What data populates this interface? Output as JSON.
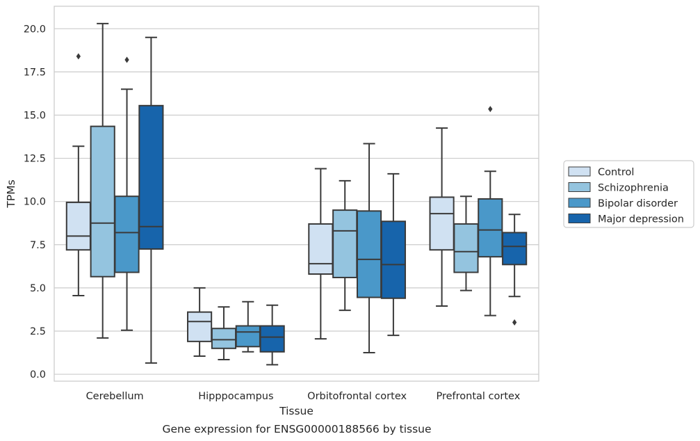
{
  "chart_data": {
    "type": "boxplot",
    "caption": "Gene expression for ENSG00000188566 by tissue",
    "xlabel": "Tissue",
    "ylabel": "TPMs",
    "ylim": [
      -0.4,
      21.3
    ],
    "yticks": [
      0.0,
      2.5,
      5.0,
      7.5,
      10.0,
      12.5,
      15.0,
      17.5,
      20.0
    ],
    "ytick_labels": [
      "0.0",
      "2.5",
      "5.0",
      "7.5",
      "10.0",
      "12.5",
      "15.0",
      "17.5",
      "20.0"
    ],
    "grid": "horizontal",
    "legend_position": "right",
    "categories": [
      "Cerebellum",
      "Hipppocampus",
      "Orbitofrontal cortex",
      "Prefrontal cortex"
    ],
    "series": [
      {
        "name": "Control",
        "color": "#d0e1f2",
        "boxes": [
          {
            "whisker_low": 4.55,
            "q1": 7.2,
            "median": 8.0,
            "q3": 9.95,
            "whisker_high": 13.2,
            "outliers": [
              18.4
            ]
          },
          {
            "whisker_low": 1.05,
            "q1": 1.9,
            "median": 3.05,
            "q3": 3.6,
            "whisker_high": 5.0,
            "outliers": []
          },
          {
            "whisker_low": 2.05,
            "q1": 5.8,
            "median": 6.4,
            "q3": 8.7,
            "whisker_high": 11.9,
            "outliers": []
          },
          {
            "whisker_low": 3.95,
            "q1": 7.2,
            "median": 9.3,
            "q3": 10.25,
            "whisker_high": 14.25,
            "outliers": []
          }
        ]
      },
      {
        "name": "Schizophrenia",
        "color": "#94c4df",
        "boxes": [
          {
            "whisker_low": 2.1,
            "q1": 5.65,
            "median": 8.75,
            "q3": 14.35,
            "whisker_high": 20.3,
            "outliers": []
          },
          {
            "whisker_low": 0.85,
            "q1": 1.5,
            "median": 2.0,
            "q3": 2.65,
            "whisker_high": 3.9,
            "outliers": []
          },
          {
            "whisker_low": 3.7,
            "q1": 5.6,
            "median": 8.3,
            "q3": 9.5,
            "whisker_high": 11.2,
            "outliers": []
          },
          {
            "whisker_low": 4.85,
            "q1": 5.9,
            "median": 7.1,
            "q3": 8.7,
            "whisker_high": 10.3,
            "outliers": []
          }
        ]
      },
      {
        "name": "Bipolar disorder",
        "color": "#4a98c9",
        "boxes": [
          {
            "whisker_low": 2.55,
            "q1": 5.9,
            "median": 8.2,
            "q3": 10.3,
            "whisker_high": 16.5,
            "outliers": [
              18.2
            ]
          },
          {
            "whisker_low": 1.3,
            "q1": 1.6,
            "median": 2.45,
            "q3": 2.8,
            "whisker_high": 4.2,
            "outliers": []
          },
          {
            "whisker_low": 1.25,
            "q1": 4.45,
            "median": 6.65,
            "q3": 9.45,
            "whisker_high": 13.35,
            "outliers": []
          },
          {
            "whisker_low": 3.4,
            "q1": 6.8,
            "median": 8.35,
            "q3": 10.15,
            "whisker_high": 11.75,
            "outliers": [
              15.35
            ]
          }
        ]
      },
      {
        "name": "Major depression",
        "color": "#1764ab",
        "boxes": [
          {
            "whisker_low": 0.65,
            "q1": 7.25,
            "median": 8.55,
            "q3": 15.55,
            "whisker_high": 19.5,
            "outliers": []
          },
          {
            "whisker_low": 0.55,
            "q1": 1.3,
            "median": 2.15,
            "q3": 2.8,
            "whisker_high": 4.0,
            "outliers": []
          },
          {
            "whisker_low": 2.25,
            "q1": 4.4,
            "median": 6.35,
            "q3": 8.85,
            "whisker_high": 11.6,
            "outliers": []
          },
          {
            "whisker_low": 4.5,
            "q1": 6.35,
            "median": 7.4,
            "q3": 8.2,
            "whisker_high": 9.25,
            "outliers": [
              3.0
            ]
          }
        ]
      }
    ]
  }
}
